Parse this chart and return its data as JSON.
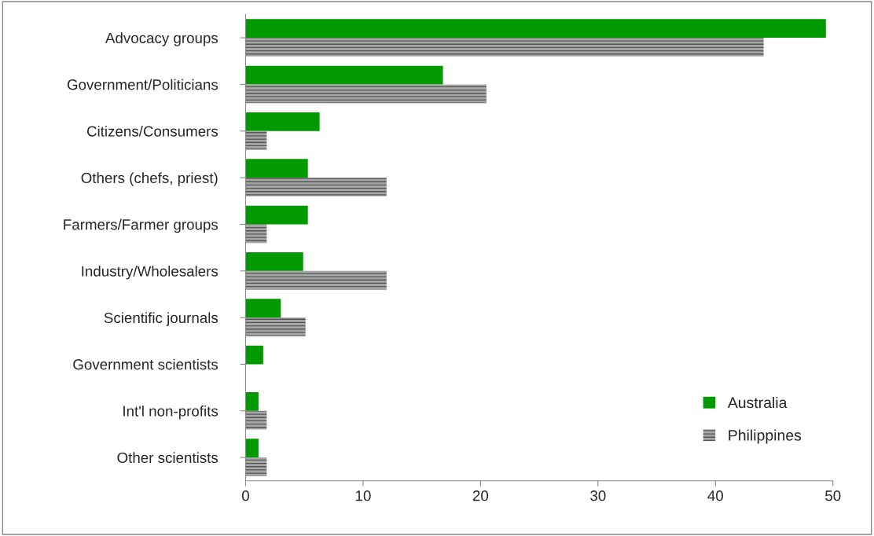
{
  "chart_data": {
    "type": "bar",
    "orientation": "horizontal",
    "categories": [
      "Advocacy groups",
      "Government/Politicians",
      "Citizens/Consumers",
      "Others (chefs, priest)",
      "Farmers/Farmer groups",
      "Industry/Wholesalers",
      "Scientific journals",
      "Government scientists",
      "Int'l non-profits",
      "Other scientists"
    ],
    "series": [
      {
        "name": "Australia",
        "color": "#009900",
        "values": [
          49.4,
          16.8,
          6.3,
          5.3,
          5.3,
          4.9,
          3.0,
          1.5,
          1.1,
          1.1
        ]
      },
      {
        "name": "Philippines",
        "color": "#a6a6a6",
        "values": [
          44.1,
          20.5,
          1.8,
          12.0,
          1.8,
          12.0,
          5.1,
          0,
          1.8,
          1.8
        ]
      }
    ],
    "xlim": [
      0,
      50
    ],
    "xticks": [
      0,
      10,
      20,
      30,
      40,
      50
    ],
    "grid": false,
    "legend": "bottom right"
  }
}
